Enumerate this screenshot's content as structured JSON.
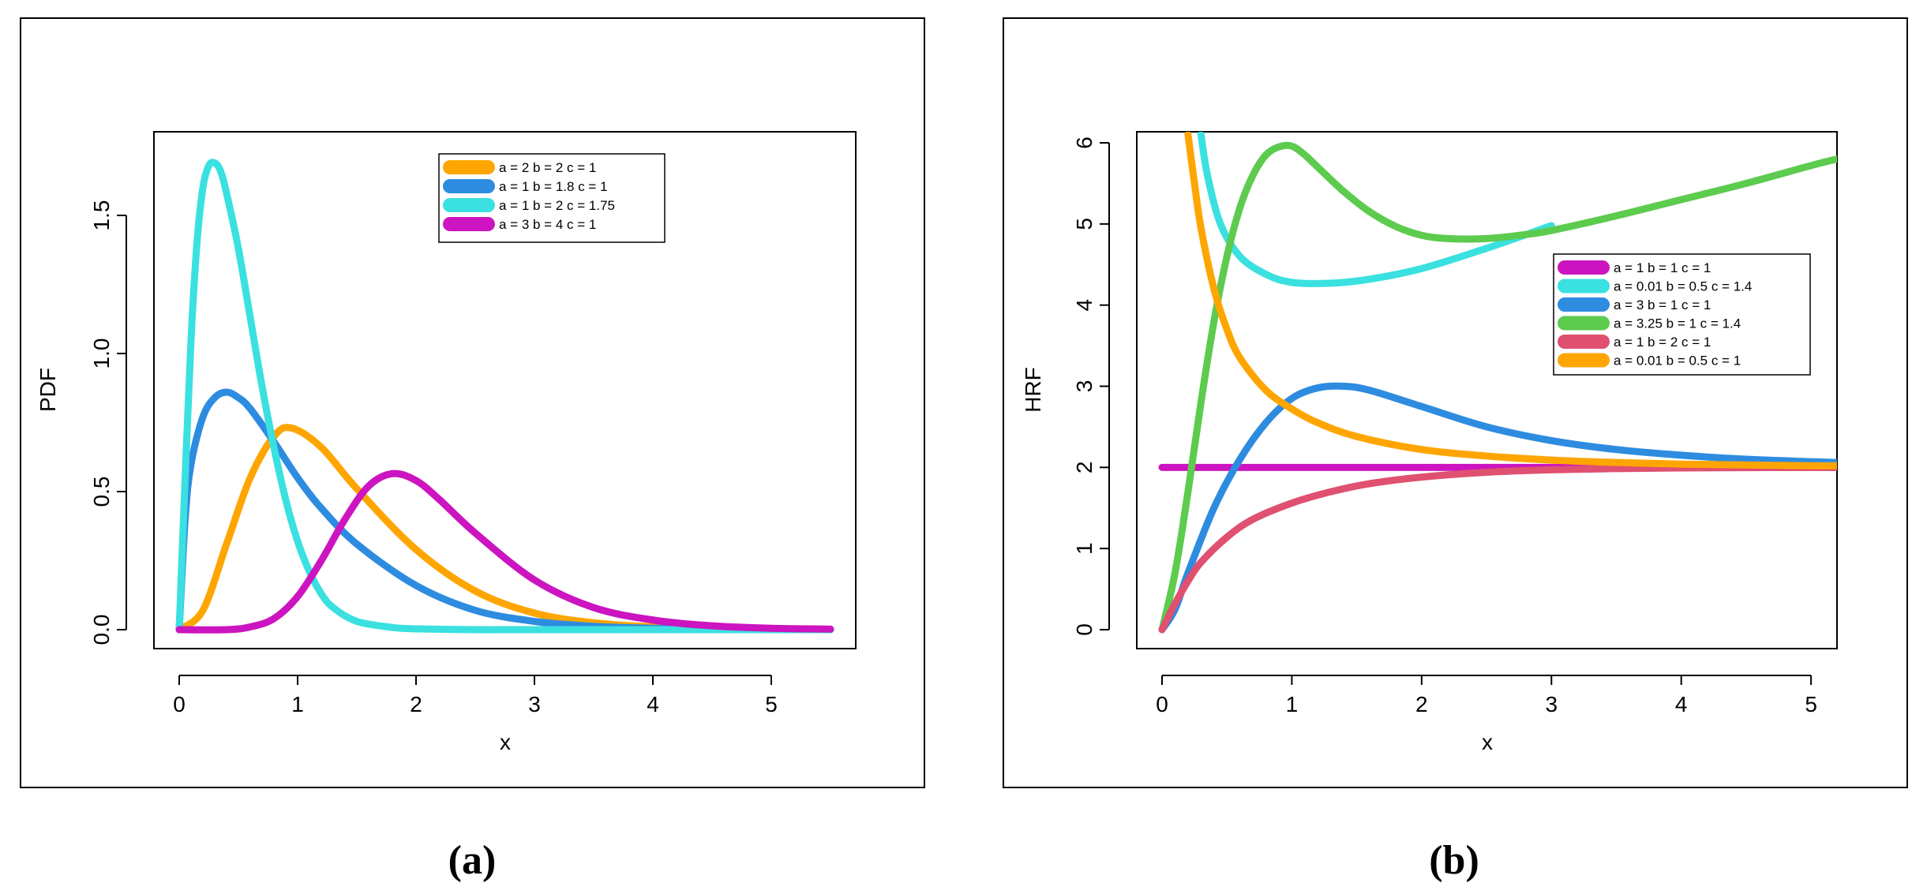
{
  "panel_labels": [
    "(a)",
    "(b)"
  ],
  "chart_data": [
    {
      "type": "line",
      "ylabel": "PDF",
      "xlabel": "x",
      "xlim": [
        0,
        5.5
      ],
      "ylim": [
        0,
        1.8
      ],
      "x_ticks": [
        "0",
        "1",
        "2",
        "3",
        "4",
        "5"
      ],
      "y_ticks": [
        "0.0",
        "0.5",
        "1.0",
        "1.5"
      ],
      "legend_position": "top-right",
      "series": [
        {
          "name": "a = 2  b = 2  c = 1",
          "color": "#FFA500",
          "x": [
            0,
            0.2,
            0.4,
            0.6,
            0.8,
            0.95,
            1.2,
            1.5,
            2,
            2.5,
            3,
            3.5,
            4,
            4.5,
            5,
            5.5
          ],
          "y": [
            0,
            0.07,
            0.31,
            0.55,
            0.7,
            0.73,
            0.66,
            0.51,
            0.29,
            0.14,
            0.06,
            0.025,
            0.01,
            0.004,
            0.002,
            0.001
          ]
        },
        {
          "name": "a = 1  b = 1.8  c = 1",
          "color": "#2E8CE0",
          "x": [
            0,
            0.05,
            0.1,
            0.2,
            0.3,
            0.4,
            0.5,
            0.6,
            0.8,
            1,
            1.2,
            1.5,
            2,
            2.5,
            3,
            3.5,
            4,
            4.5,
            5,
            5.5
          ],
          "y": [
            0,
            0.4,
            0.6,
            0.77,
            0.84,
            0.86,
            0.84,
            0.8,
            0.68,
            0.55,
            0.44,
            0.31,
            0.16,
            0.07,
            0.03,
            0.012,
            0.005,
            0.002,
            0.001,
            0
          ]
        },
        {
          "name": "a = 1  b = 2  c = 1.75",
          "color": "#3BE0E0",
          "x": [
            0,
            0.05,
            0.1,
            0.15,
            0.2,
            0.25,
            0.3,
            0.35,
            0.4,
            0.5,
            0.6,
            0.7,
            0.8,
            0.9,
            1,
            1.1,
            1.2,
            1.3,
            1.5,
            1.8,
            2,
            2.5,
            3,
            4,
            5,
            5.5
          ],
          "y": [
            0,
            0.55,
            1.05,
            1.4,
            1.6,
            1.68,
            1.69,
            1.66,
            1.58,
            1.38,
            1.13,
            0.88,
            0.66,
            0.47,
            0.32,
            0.21,
            0.13,
            0.08,
            0.03,
            0.008,
            0.003,
            0,
            0,
            0,
            0,
            0
          ]
        },
        {
          "name": "a = 3  b = 4  c = 1",
          "color": "#CC14C0",
          "x": [
            0,
            0.4,
            0.6,
            0.8,
            1,
            1.2,
            1.4,
            1.6,
            1.8,
            2,
            2.2,
            2.5,
            3,
            3.5,
            4,
            4.5,
            5,
            5.5
          ],
          "y": [
            0,
            0.0,
            0.01,
            0.04,
            0.12,
            0.25,
            0.4,
            0.52,
            0.565,
            0.54,
            0.47,
            0.35,
            0.18,
            0.08,
            0.035,
            0.014,
            0.005,
            0.002
          ]
        }
      ]
    },
    {
      "type": "line",
      "ylabel": "HRF",
      "xlabel": "x",
      "xlim": [
        0,
        5.2
      ],
      "ylim": [
        0,
        6
      ],
      "x_ticks": [
        "0",
        "1",
        "2",
        "3",
        "4",
        "5"
      ],
      "y_ticks": [
        "0",
        "1",
        "2",
        "3",
        "4",
        "5",
        "6"
      ],
      "legend_position": "right",
      "series": [
        {
          "name": "a = 1  b = 1  c = 1",
          "color": "#CC14C0",
          "x": [
            0,
            5.2
          ],
          "y": [
            2,
            2
          ]
        },
        {
          "name": "a = 0.01  b = 0.5  c = 1.4",
          "color": "#3BE0E0",
          "x": [
            0.3,
            0.35,
            0.45,
            0.6,
            0.8,
            1,
            1.3,
            1.6,
            2,
            2.5,
            3
          ],
          "y": [
            6.1,
            5.6,
            5.0,
            4.6,
            4.38,
            4.28,
            4.27,
            4.32,
            4.45,
            4.7,
            4.98
          ]
        },
        {
          "name": "a = 3  b = 1  c = 1",
          "color": "#2E8CE0",
          "x": [
            0,
            0.1,
            0.2,
            0.4,
            0.6,
            0.8,
            1,
            1.2,
            1.4,
            1.6,
            2,
            2.5,
            3,
            3.5,
            4,
            4.5,
            5,
            5.2
          ],
          "y": [
            0,
            0.25,
            0.7,
            1.5,
            2.1,
            2.55,
            2.85,
            2.98,
            3.0,
            2.95,
            2.75,
            2.5,
            2.33,
            2.22,
            2.15,
            2.1,
            2.07,
            2.06
          ]
        },
        {
          "name": "a = 3.25  b = 1  c = 1.4",
          "color": "#5CCB4E",
          "x": [
            0,
            0.1,
            0.2,
            0.3,
            0.4,
            0.5,
            0.6,
            0.7,
            0.8,
            0.9,
            1,
            1.1,
            1.2,
            1.4,
            1.6,
            1.8,
            2,
            2.2,
            2.5,
            2.8,
            3,
            3.5,
            4,
            4.5,
            5,
            5.2
          ],
          "y": [
            0,
            0.7,
            1.7,
            2.8,
            3.8,
            4.6,
            5.2,
            5.6,
            5.85,
            5.95,
            5.96,
            5.85,
            5.7,
            5.4,
            5.15,
            4.97,
            4.86,
            4.82,
            4.82,
            4.87,
            4.92,
            5.1,
            5.3,
            5.5,
            5.72,
            5.8
          ]
        },
        {
          "name": "a = 1  b = 2  c = 1",
          "color": "#E05070",
          "x": [
            0,
            0.1,
            0.2,
            0.3,
            0.5,
            0.7,
            1,
            1.3,
            1.6,
            2,
            2.5,
            3,
            3.5,
            4,
            4.5,
            5,
            5.2
          ],
          "y": [
            0,
            0.32,
            0.6,
            0.83,
            1.14,
            1.36,
            1.56,
            1.7,
            1.8,
            1.88,
            1.94,
            1.97,
            1.985,
            1.993,
            1.997,
            1.999,
            2.0
          ]
        },
        {
          "name": "a = 0.01  b = 0.5  c = 1",
          "color": "#FFA500",
          "x": [
            0.2,
            0.25,
            0.3,
            0.4,
            0.5,
            0.6,
            0.8,
            1,
            1.2,
            1.5,
            2,
            2.5,
            3,
            3.5,
            4,
            4.5,
            5,
            5.2
          ],
          "y": [
            6.1,
            5.5,
            4.95,
            4.2,
            3.7,
            3.35,
            2.95,
            2.72,
            2.55,
            2.38,
            2.22,
            2.14,
            2.09,
            2.06,
            2.04,
            2.03,
            2.02,
            2.02
          ]
        }
      ]
    }
  ]
}
